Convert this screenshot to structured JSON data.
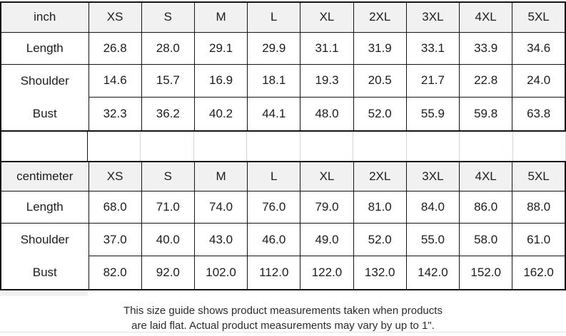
{
  "tables": [
    {
      "unit_label": "inch",
      "sizes": [
        "XS",
        "S",
        "M",
        "L",
        "XL",
        "2XL",
        "3XL",
        "4XL",
        "5XL"
      ],
      "rows": [
        {
          "label": "Length",
          "values": [
            "26.8",
            "28.0",
            "29.1",
            "29.9",
            "31.1",
            "31.9",
            "33.1",
            "33.9",
            "34.6"
          ]
        },
        {
          "label": "Shoulder",
          "values": [
            "14.6",
            "15.7",
            "16.9",
            "18.1",
            "19.3",
            "20.5",
            "21.7",
            "22.8",
            "24.0"
          ]
        },
        {
          "label": "Bust",
          "values": [
            "32.3",
            "36.2",
            "40.2",
            "44.1",
            "48.0",
            "52.0",
            "55.9",
            "59.8",
            "63.8"
          ]
        }
      ]
    },
    {
      "unit_label": "centimeter",
      "sizes": [
        "XS",
        "S",
        "M",
        "L",
        "XL",
        "2XL",
        "3XL",
        "4XL",
        "5XL"
      ],
      "rows": [
        {
          "label": "Length",
          "values": [
            "68.0",
            "71.0",
            "74.0",
            "76.0",
            "79.0",
            "81.0",
            "84.0",
            "86.0",
            "88.0"
          ]
        },
        {
          "label": "Shoulder",
          "values": [
            "37.0",
            "40.0",
            "43.0",
            "46.0",
            "49.0",
            "52.0",
            "55.0",
            "58.0",
            "61.0"
          ]
        },
        {
          "label": "Bust",
          "values": [
            "82.0",
            "92.0",
            "102.0",
            "112.0",
            "122.0",
            "132.0",
            "142.0",
            "152.0",
            "162.0"
          ]
        }
      ]
    }
  ],
  "footer": {
    "line1": "This size guide shows product measurements taken when products",
    "line2": "are laid flat. Actual product measurements may vary by up to 1\"."
  },
  "colors": {
    "cell_fill": "#f1f1f1",
    "border": "#141414",
    "faint_line": "#ccd5e2",
    "bottom_rule": "#dde3ee"
  }
}
